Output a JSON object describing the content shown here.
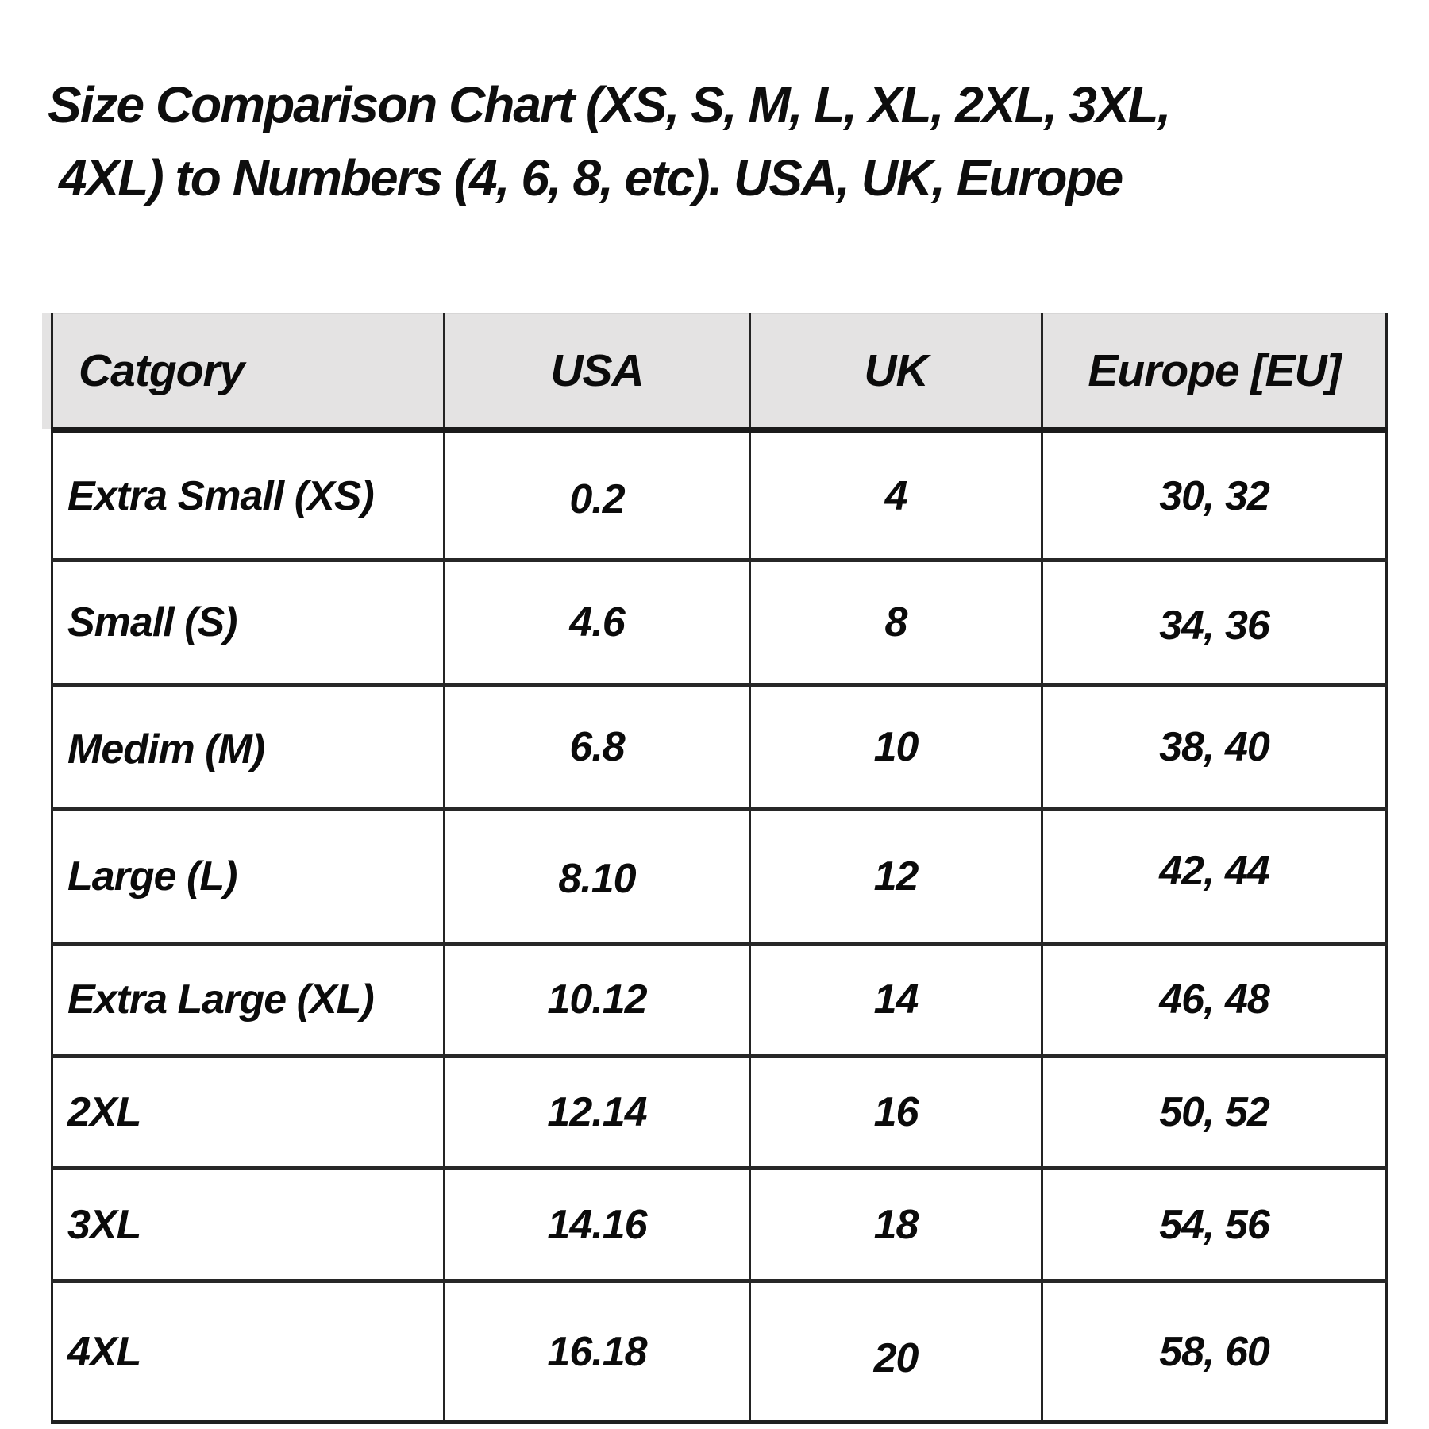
{
  "title": {
    "line1": "Size Comparison Chart (XS, S, M, L, XL, 2XL, 3XL,",
    "line2": "4XL) to Numbers (4, 6, 8, etc). USA, UK, Europe"
  },
  "chart_data": {
    "type": "table",
    "title": "Size Comparison Chart (XS, S, M, L, XL, 2XL, 3XL, 4XL) to Numbers (4, 6, 8, etc). USA, UK, Europe",
    "columns": [
      "Catgory",
      "USA",
      "UK",
      "Europe [EU]"
    ],
    "rows": [
      [
        "Extra Small (XS)",
        "0.2",
        "4",
        "30, 32"
      ],
      [
        "Small (S)",
        "4.6",
        "8",
        "34, 36"
      ],
      [
        "Medim (M)",
        "6.8",
        "10",
        "38, 40"
      ],
      [
        "Large (L)",
        "8.10",
        "12",
        "42, 44"
      ],
      [
        "Extra Large (XL)",
        "10.12",
        "14",
        "46, 48"
      ],
      [
        "2XL",
        "12.14",
        "16",
        "50, 52"
      ],
      [
        "3XL",
        "14.16",
        "18",
        "54, 56"
      ],
      [
        "4XL",
        "16.18",
        "20",
        "58, 60"
      ]
    ]
  },
  "colors": {
    "background": "#ffffff",
    "header_bg": "#e4e3e3",
    "border": "#202020",
    "text": "#0b0b0b"
  }
}
